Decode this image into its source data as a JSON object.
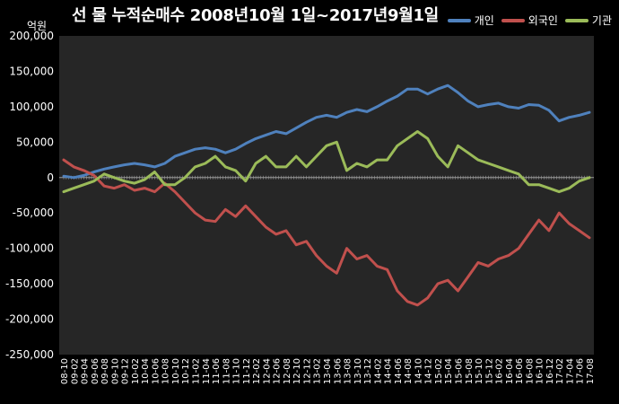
{
  "chart_data": {
    "type": "line",
    "title": "선 물 누적순매수 2008년10월 1일~2017년9월1일",
    "ylabel": "억원",
    "xlabel": "",
    "ylim": [
      -250000,
      200000
    ],
    "yticks": [
      "200,000",
      "150,000",
      "100,000",
      "50,000",
      "0",
      "-50,000",
      "-100,000",
      "-150,000",
      "-200,000",
      "-250,000"
    ],
    "grid": false,
    "legend_position": "top-right",
    "categories": [
      "08-10",
      "09-02",
      "09-04",
      "09-06",
      "09-08",
      "09-10",
      "09-12",
      "10-02",
      "10-04",
      "10-06",
      "10-08",
      "10-10",
      "10-12",
      "11-02",
      "11-04",
      "11-06",
      "11-08",
      "11-10",
      "11-12",
      "12-02",
      "12-04",
      "12-06",
      "12-08",
      "12-10",
      "12-12",
      "13-02",
      "13-04",
      "13-06",
      "13-08",
      "13-10",
      "13-12",
      "14-02",
      "14-04",
      "14-06",
      "14-08",
      "14-10",
      "14-12",
      "15-02",
      "15-04",
      "15-06",
      "15-08",
      "15-10",
      "15-12",
      "16-02",
      "16-04",
      "16-06",
      "16-08",
      "16-10",
      "16-12",
      "17-02",
      "17-04",
      "17-06",
      "17-08"
    ],
    "series": [
      {
        "name": "개인",
        "color": "#4f81bd",
        "values": [
          2000,
          0,
          3000,
          8000,
          12000,
          15000,
          18000,
          20000,
          18000,
          15000,
          20000,
          30000,
          35000,
          40000,
          42000,
          40000,
          35000,
          40000,
          48000,
          55000,
          60000,
          65000,
          62000,
          70000,
          78000,
          85000,
          88000,
          85000,
          92000,
          96000,
          93000,
          100000,
          108000,
          115000,
          125000,
          125000,
          118000,
          125000,
          130000,
          120000,
          108000,
          100000,
          103000,
          105000,
          100000,
          98000,
          103000,
          102000,
          95000,
          80000,
          85000,
          88000,
          92000
        ]
      },
      {
        "name": "외국인",
        "color": "#c0504d",
        "values": [
          25000,
          15000,
          10000,
          3000,
          -12000,
          -15000,
          -10000,
          -18000,
          -15000,
          -20000,
          -8000,
          -20000,
          -35000,
          -50000,
          -60000,
          -62000,
          -45000,
          -55000,
          -40000,
          -55000,
          -70000,
          -80000,
          -75000,
          -95000,
          -90000,
          -110000,
          -125000,
          -135000,
          -100000,
          -115000,
          -110000,
          -125000,
          -130000,
          -160000,
          -175000,
          -180000,
          -170000,
          -150000,
          -145000,
          -160000,
          -140000,
          -120000,
          -125000,
          -115000,
          -110000,
          -100000,
          -80000,
          -60000,
          -75000,
          -50000,
          -65000,
          -75000,
          -85000
        ]
      },
      {
        "name": "기관",
        "color": "#9bbb59",
        "values": [
          -20000,
          -15000,
          -10000,
          -5000,
          5000,
          0,
          -5000,
          -8000,
          -3000,
          8000,
          -10000,
          -10000,
          0,
          15000,
          20000,
          30000,
          15000,
          10000,
          -5000,
          20000,
          30000,
          15000,
          15000,
          30000,
          15000,
          30000,
          45000,
          50000,
          10000,
          20000,
          15000,
          25000,
          25000,
          45000,
          55000,
          65000,
          55000,
          30000,
          15000,
          45000,
          35000,
          25000,
          20000,
          15000,
          10000,
          5000,
          -10000,
          -10000,
          -15000,
          -20000,
          -15000,
          -5000,
          0
        ]
      }
    ]
  }
}
